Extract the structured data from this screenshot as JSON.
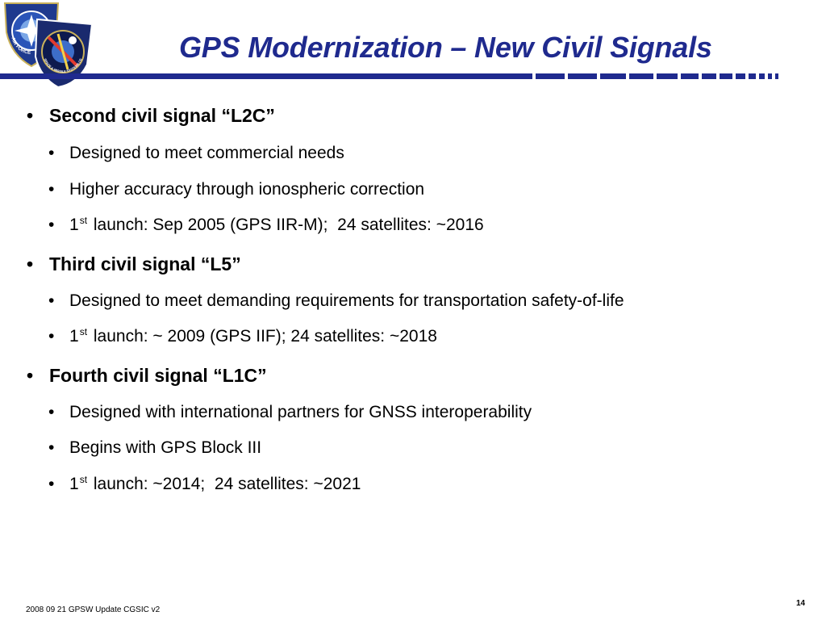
{
  "title": "GPS Modernization – New Civil Signals",
  "logos": {
    "left_ring_text": "AIR FORCE",
    "right_ring_text": "SPACE & MISSILE SYSTEMS CENTER"
  },
  "bullets": [
    {
      "text": "Second civil signal “L2C”",
      "sub": [
        {
          "text": "Designed to meet commercial needs"
        },
        {
          "text": "Higher accuracy through ionospheric correction"
        },
        {
          "pre": "1",
          "sup": "st",
          "post": " launch: Sep 2005 (GPS IIR-M);  24 satellites: ~2016"
        }
      ]
    },
    {
      "text": "Third civil signal “L5”",
      "sub": [
        {
          "text": "Designed to meet demanding requirements for transportation safety-of-life"
        },
        {
          "pre": "1",
          "sup": "st",
          "post": " launch: ~ 2009 (GPS IIF); 24 satellites: ~2018"
        }
      ]
    },
    {
      "text": "Fourth civil signal “L1C”",
      "sub": [
        {
          "text": "Designed with international partners for GNSS interoperability"
        },
        {
          "text": "Begins with GPS Block III"
        },
        {
          "pre": "1",
          "sup": "st",
          "post": " launch: ~2014;  24 satellites: ~2021"
        }
      ]
    }
  ],
  "bullet_glyph": "•",
  "footer": {
    "left": "2008 09 21 GPSW Update CGSIC v2",
    "page": "14"
  },
  "colors": {
    "title": "#1f2a8e",
    "rule": "#1f2a8e"
  }
}
